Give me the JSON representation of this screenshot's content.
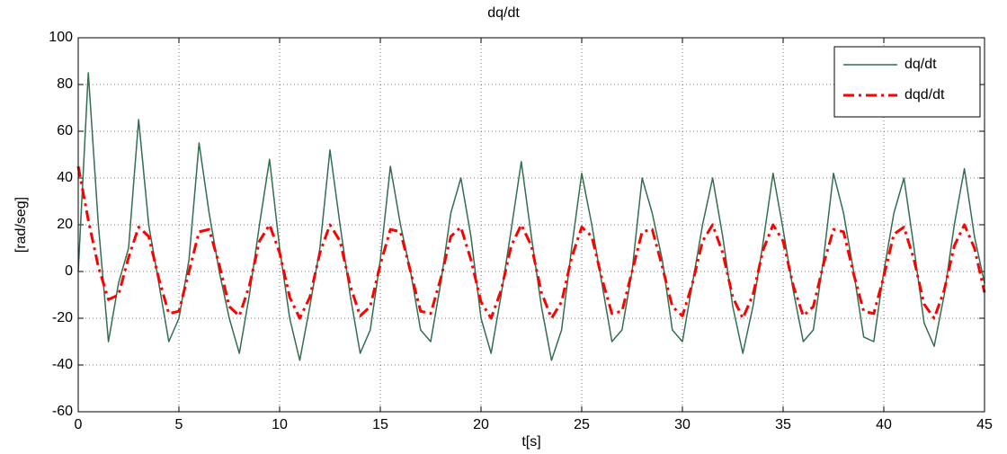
{
  "chart_data": {
    "type": "line",
    "title": "dq/dt",
    "xlabel": "t[s]",
    "ylabel": "[rad/seg]",
    "x": [
      0,
      0.5,
      1,
      1.5,
      2,
      2.5,
      3,
      3.5,
      4,
      4.5,
      5,
      5.5,
      6,
      6.5,
      7,
      7.5,
      8,
      8.5,
      9,
      9.5,
      10,
      10.5,
      11,
      11.5,
      12,
      12.5,
      13,
      13.5,
      14,
      14.5,
      15,
      15.5,
      16,
      16.5,
      17,
      17.5,
      18,
      18.5,
      19,
      19.5,
      20,
      20.5,
      21,
      21.5,
      22,
      22.5,
      23,
      23.5,
      24,
      24.5,
      25,
      25.5,
      26,
      26.5,
      27,
      27.5,
      28,
      28.5,
      29,
      29.5,
      30,
      30.5,
      31,
      31.5,
      32,
      32.5,
      33,
      33.5,
      34,
      34.5,
      35,
      35.5,
      36,
      36.5,
      37,
      37.5,
      38,
      38.5,
      39,
      39.5,
      40,
      40.5,
      41,
      41.5,
      42,
      42.5,
      43,
      43.5,
      44,
      44.5,
      45
    ],
    "series": [
      {
        "name": "dq/dt",
        "color": "#336e50",
        "style": "solid",
        "values": [
          0,
          85,
          20,
          -30,
          -5,
          10,
          65,
          20,
          -5,
          -30,
          -20,
          5,
          55,
          25,
          0,
          -20,
          -35,
          -10,
          20,
          48,
          10,
          -20,
          -38,
          -15,
          10,
          52,
          20,
          -10,
          -35,
          -25,
          5,
          45,
          20,
          0,
          -25,
          -30,
          -5,
          25,
          40,
          15,
          -20,
          -35,
          -10,
          18,
          47,
          15,
          -15,
          -38,
          -25,
          10,
          42,
          20,
          -5,
          -30,
          -25,
          0,
          40,
          25,
          5,
          -25,
          -30,
          -5,
          20,
          40,
          15,
          -15,
          -35,
          -15,
          12,
          42,
          18,
          -8,
          -30,
          -25,
          5,
          42,
          25,
          0,
          -28,
          -30,
          0,
          25,
          40,
          10,
          -22,
          -32,
          -10,
          20,
          44,
          15,
          -5
        ]
      },
      {
        "name": "dqd/dt",
        "color": "#ff0000",
        "style": "dashdot",
        "values": [
          45,
          22,
          2,
          -12,
          -10,
          6,
          19,
          15,
          -3,
          -18,
          -17,
          0,
          17,
          18,
          3,
          -15,
          -19,
          -6,
          13,
          20,
          8,
          -11,
          -20,
          -11,
          8,
          20,
          13,
          -6,
          -19,
          -15,
          3,
          18,
          17,
          0,
          -17,
          -18,
          -3,
          15,
          19,
          5,
          -13,
          -20,
          -8,
          11,
          20,
          11,
          -9,
          -20,
          -13,
          6,
          19,
          15,
          -3,
          -18,
          -17,
          0,
          17,
          18,
          2,
          -15,
          -19,
          -5,
          13,
          20,
          8,
          -11,
          -20,
          -10,
          9,
          20,
          13,
          -6,
          -19,
          -15,
          3,
          18,
          17,
          -1,
          -17,
          -18,
          -2,
          16,
          19,
          5,
          -14,
          -20,
          -8,
          11,
          20,
          10,
          -9
        ]
      }
    ],
    "xlim": [
      0,
      45
    ],
    "xticks": [
      0,
      5,
      10,
      15,
      20,
      25,
      30,
      35,
      40,
      45
    ],
    "ylim": [
      -60,
      100
    ],
    "yticks": [
      -60,
      -40,
      -20,
      0,
      20,
      40,
      60,
      80,
      100
    ],
    "grid": true,
    "legend": "upper-right"
  }
}
